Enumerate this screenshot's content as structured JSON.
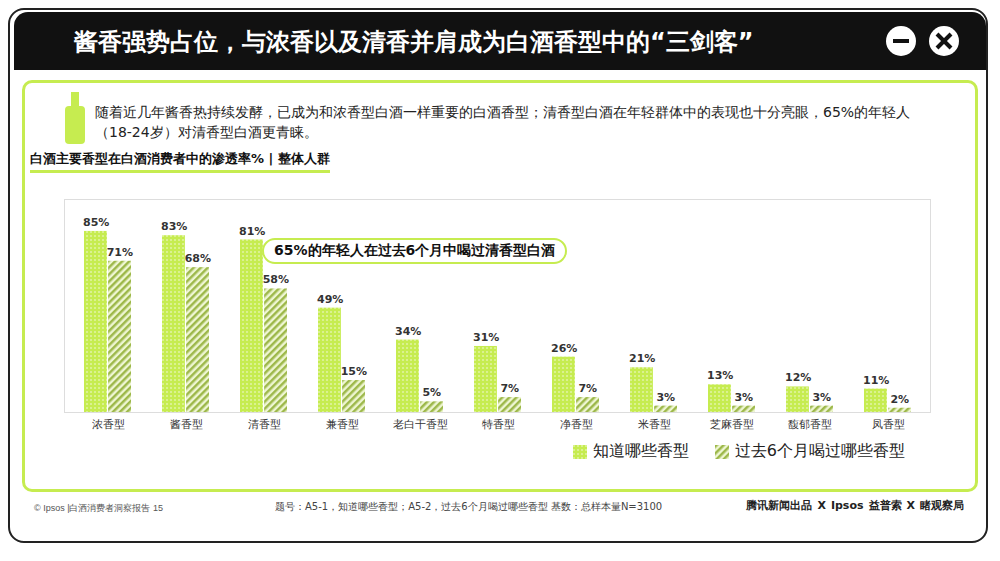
{
  "chart_data": {
    "type": "bar",
    "title": "酱香强势占位，与浓香以及清香并肩成为白酒香型中的“三剑客”",
    "subtitle": "随着近几年酱香热持续发酵，已成为和浓香型白酒一样重要的白酒香型；清香型白酒在年轻群体中的表现也十分亮眼，65%的年轻人（18-24岁）对清香型白酒更青睐。",
    "panel_title": "白酒主要香型在白酒消费者中的渗透率% | 整体人群",
    "annotations": [
      "65%的年轻人在过去6个月中喝过清香型白酒"
    ],
    "categories": [
      "浓香型",
      "酱香型",
      "清香型",
      "兼香型",
      "老白干香型",
      "特香型",
      "净香型",
      "米香型",
      "芝麻香型",
      "馥郁香型",
      "凤香型"
    ],
    "series": [
      {
        "name": "知道哪些香型",
        "color": "#c6ec50",
        "values": [
          85,
          83,
          81,
          49,
          34,
          31,
          26,
          21,
          13,
          12,
          11
        ],
        "value_labels": [
          "85%",
          "83%",
          "81%",
          "49%",
          "34%",
          "31%",
          "26%",
          "21%",
          "13%",
          "12%",
          "11%"
        ]
      },
      {
        "name": "过去6个月喝过哪些香型",
        "color": "#9db84a",
        "values": [
          71,
          68,
          58,
          15,
          5,
          7,
          7,
          3,
          3,
          3,
          2
        ],
        "value_labels": [
          "71%",
          "68%",
          "58%",
          "15%",
          "5%",
          "7%",
          "7%",
          "3%",
          "3%",
          "3%",
          "2%"
        ]
      }
    ],
    "ylim": [
      0,
      100
    ],
    "grid": false,
    "legend": "bottom-right",
    "data_labels": true,
    "tick_labels": "x",
    "source": "题号：A5-1，知道哪些香型；A5-2，过去6个月喝过哪些香型    基数：总样本量N=3100",
    "footer": "© Ipsos |白酒消费者洞察报告  15",
    "logos": [
      "腾讯新闻出品",
      "X",
      "Ipsos",
      "益普索",
      "X",
      "睹观察局"
    ]
  }
}
